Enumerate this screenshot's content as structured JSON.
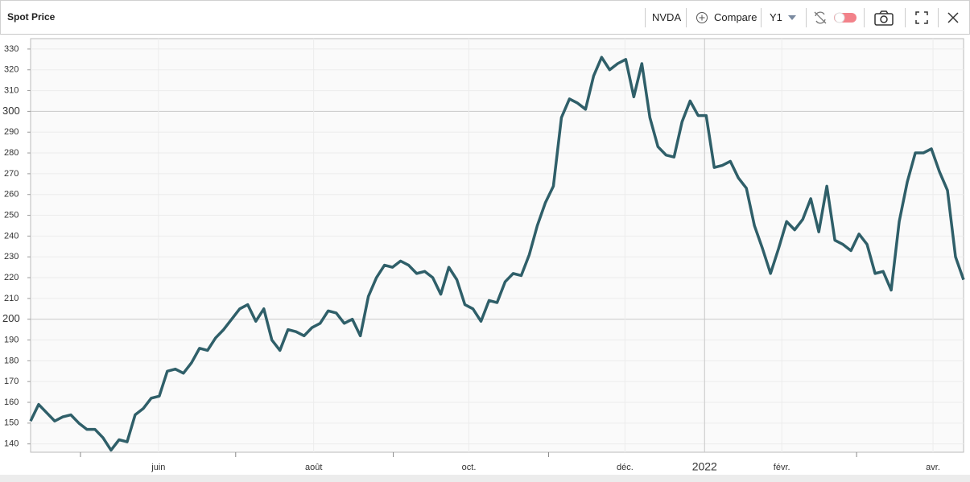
{
  "header": {
    "title": "Spot Price",
    "ticker": "NVDA",
    "compare": "Compare",
    "range": "Y1"
  },
  "chart_data": {
    "type": "line",
    "color": "#2f5f69",
    "grid": true,
    "values": [
      151,
      159,
      155,
      151,
      153,
      154,
      150,
      147,
      147,
      143,
      137,
      142,
      141,
      154,
      157,
      162,
      163,
      175,
      176,
      174,
      179,
      186,
      185,
      191,
      195,
      200,
      205,
      207,
      199,
      205,
      190,
      185,
      195,
      194,
      192,
      196,
      198,
      204,
      203,
      198,
      200,
      192,
      211,
      220,
      226,
      225,
      228,
      226,
      222,
      223,
      220,
      212,
      225,
      219,
      207,
      205,
      199,
      209,
      208,
      218,
      222,
      221,
      231,
      245,
      256,
      264,
      297,
      306,
      304,
      301,
      317,
      326,
      320,
      323,
      325,
      307,
      323,
      297,
      283,
      279,
      278,
      295,
      305,
      298,
      298,
      273,
      274,
      276,
      268,
      263,
      245,
      234,
      222,
      234,
      247,
      243,
      248,
      258,
      242,
      264,
      238,
      236,
      233,
      241,
      236,
      222,
      223,
      214,
      247,
      266,
      280,
      280,
      282,
      271,
      262,
      230,
      219
    ],
    "xlim": [
      0,
      116
    ],
    "xticks": [
      6.2,
      {
        "value": 15.9,
        "label": "juin"
      },
      25.5,
      {
        "value": 35.2,
        "label": "août"
      },
      45.1,
      {
        "value": 54.5,
        "label": "oct."
      },
      64.4,
      {
        "value": 73.9,
        "label": "déc."
      },
      {
        "value": 83.8,
        "label": "2022"
      },
      {
        "value": 93.4,
        "label": "févr."
      },
      102.7,
      {
        "value": 112.2,
        "label": "avr."
      }
    ],
    "ylim": [
      136,
      335
    ],
    "yticks": [
      140,
      150,
      160,
      170,
      180,
      190,
      200,
      210,
      220,
      230,
      240,
      250,
      260,
      270,
      280,
      290,
      300,
      310,
      320,
      330
    ]
  }
}
